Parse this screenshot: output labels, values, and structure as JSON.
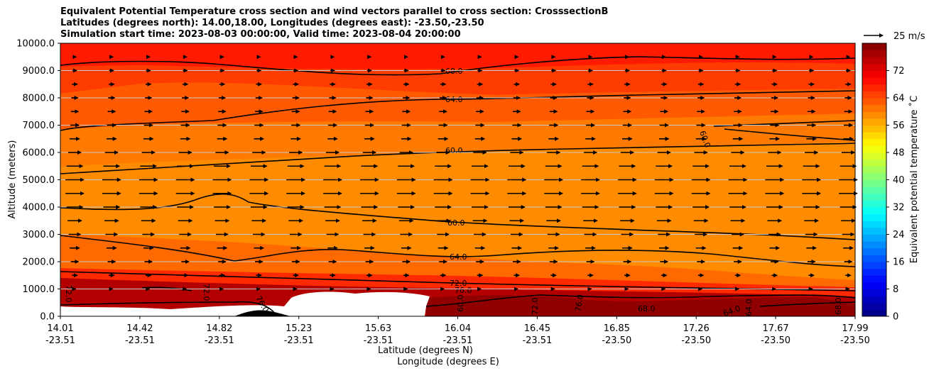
{
  "chart_data": {
    "type": "contourf",
    "title_lines": [
      "Equivalent Potential Temperature cross section and wind vectors parallel to cross section: CrosssectionB",
      "Latitudes (degrees north): 14.00,18.00, Longitudes (degrees east): -23.50,-23.50",
      "Simulation start time: 2023-08-03 00:00:00, Valid time: 2023-08-04 20:00:00"
    ],
    "ylabel": "Altitude (meters)",
    "xlabel_lat": "Latitude (degrees N)",
    "xlabel_lon": "Longitude (degrees E)",
    "ylim": [
      0,
      10000
    ],
    "y_ticks": [
      "0.0",
      "1000.0",
      "2000.0",
      "3000.0",
      "4000.0",
      "5000.0",
      "6000.0",
      "7000.0",
      "8000.0",
      "9000.0",
      "10000.0"
    ],
    "x_ticks": [
      {
        "lat": "14.01",
        "lon": "-23.51"
      },
      {
        "lat": "14.42",
        "lon": "-23.51"
      },
      {
        "lat": "14.82",
        "lon": "-23.51"
      },
      {
        "lat": "15.23",
        "lon": "-23.51"
      },
      {
        "lat": "15.63",
        "lon": "-23.51"
      },
      {
        "lat": "16.04",
        "lon": "-23.51"
      },
      {
        "lat": "16.45",
        "lon": "-23.51"
      },
      {
        "lat": "16.85",
        "lon": "-23.50"
      },
      {
        "lat": "17.26",
        "lon": "-23.50"
      },
      {
        "lat": "17.67",
        "lon": "-23.50"
      },
      {
        "lat": "17.99",
        "lon": "-23.50"
      }
    ],
    "colorbar": {
      "label": "Equivalent potential temperature ˚C",
      "ticks": [
        "0",
        "8",
        "16",
        "24",
        "32",
        "40",
        "48",
        "56",
        "64",
        "72"
      ],
      "range": [
        0,
        80
      ]
    },
    "quiver_key": {
      "label": "25 m/s",
      "speed": 25
    },
    "contour_labels": [
      "68.0",
      "64.0",
      "60.0",
      "60.0",
      "60.0",
      "64.0",
      "72.0",
      "76.0",
      "72.0",
      "72.0",
      "76.0",
      "68.0",
      "64.0",
      "76.0",
      "72.0",
      "60.0",
      "64.0",
      "68.0"
    ],
    "wind_profile": [
      {
        "altitude": 1000,
        "speed": 2
      },
      {
        "altitude": 1500,
        "speed": 5
      },
      {
        "altitude": 2000,
        "speed": 7
      },
      {
        "altitude": 2500,
        "speed": 9
      },
      {
        "altitude": 3000,
        "speed": 11
      },
      {
        "altitude": 3500,
        "speed": 13
      },
      {
        "altitude": 4000,
        "speed": 15
      },
      {
        "altitude": 4500,
        "speed": 17
      },
      {
        "altitude": 5000,
        "speed": 17
      },
      {
        "altitude": 5500,
        "speed": 15
      },
      {
        "altitude": 6000,
        "speed": 12
      },
      {
        "altitude": 6500,
        "speed": 9
      },
      {
        "altitude": 7000,
        "speed": 8
      },
      {
        "altitude": 7500,
        "speed": 7
      },
      {
        "altitude": 8000,
        "speed": 6
      },
      {
        "altitude": 8500,
        "speed": 5
      },
      {
        "altitude": 9000,
        "speed": 4
      },
      {
        "altitude": 9500,
        "speed": 3
      }
    ]
  }
}
